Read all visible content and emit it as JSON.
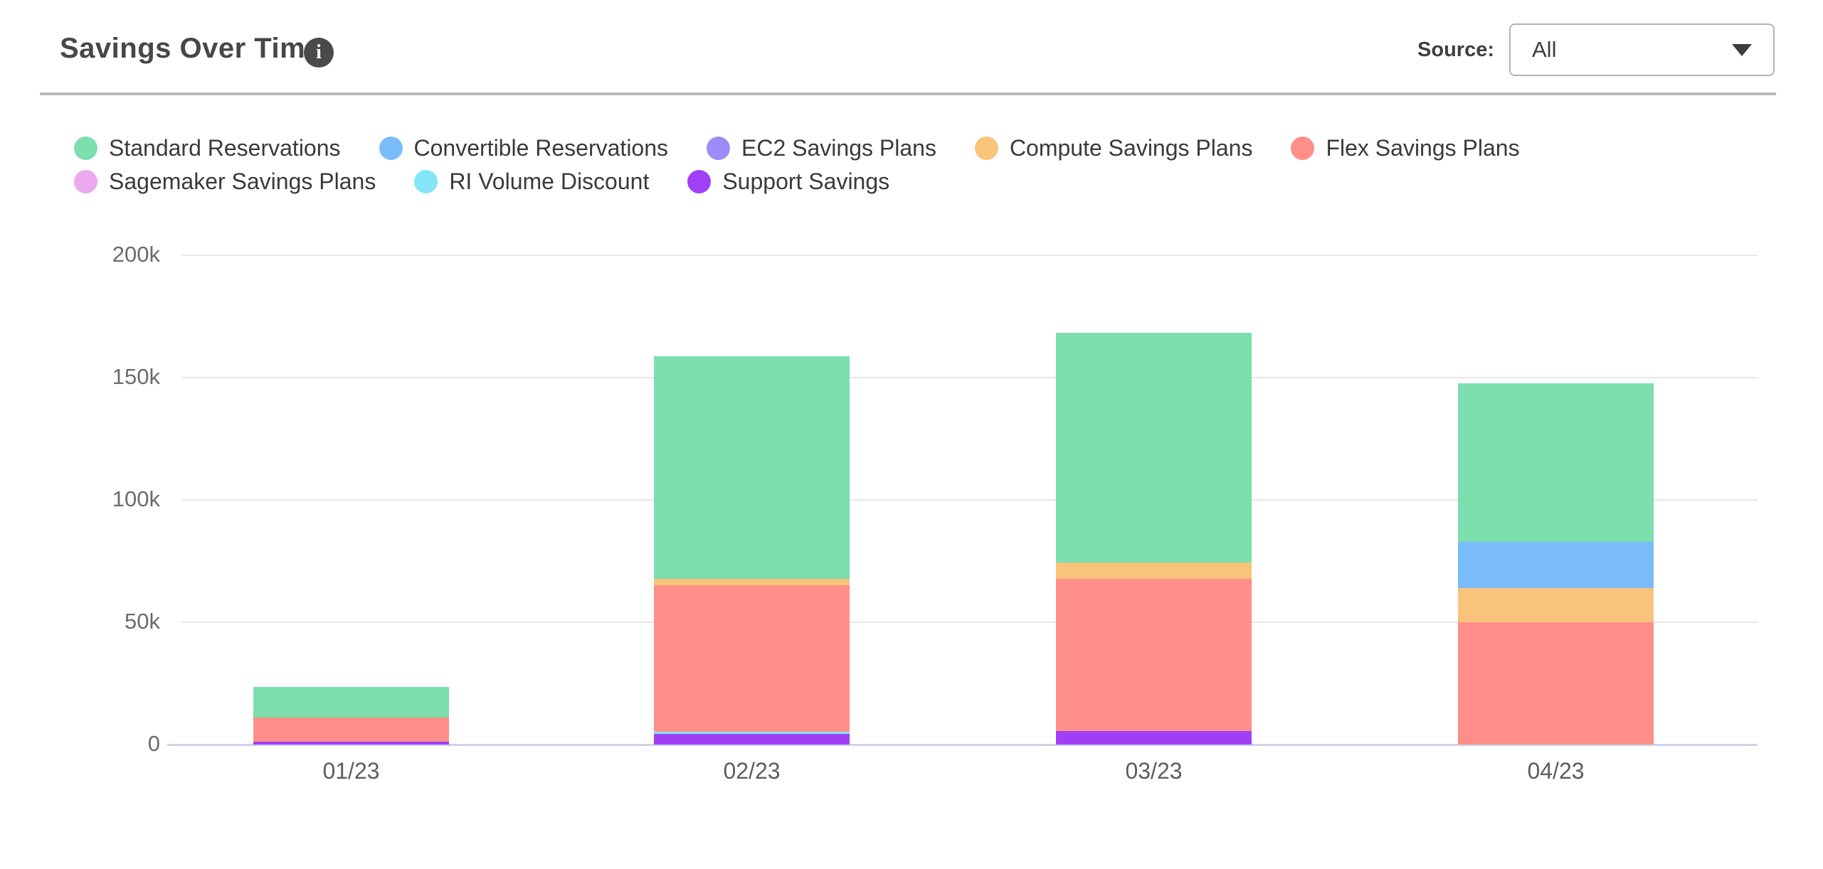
{
  "header": {
    "title": "Savings Over Time",
    "source_label": "Source:",
    "source_value": "All"
  },
  "chart_data": {
    "type": "bar",
    "stacked": true,
    "title": "Savings Over Time",
    "categories": [
      "01/23",
      "02/23",
      "03/23",
      "04/23"
    ],
    "values_unit": "thousands",
    "series": [
      {
        "name": "Standard Reservations",
        "color": "#7ddeae",
        "values": [
          12.4,
          91.1,
          93.7,
          64.8
        ]
      },
      {
        "name": "Convertible Reservations",
        "color": "#7abcf9",
        "values": [
          0,
          0,
          0,
          19.0
        ]
      },
      {
        "name": "EC2 Savings Plans",
        "color": "#9c8cfa",
        "values": [
          0,
          0,
          0,
          0
        ]
      },
      {
        "name": "Compute Savings Plans",
        "color": "#f8c47b",
        "values": [
          0,
          2.6,
          6.8,
          13.9
        ]
      },
      {
        "name": "Flex Savings Plans",
        "color": "#ff8e89",
        "values": [
          10.0,
          59.9,
          62.3,
          50.0
        ]
      },
      {
        "name": "Sagemaker Savings Plans",
        "color": "#eca9ee",
        "values": [
          0,
          0,
          0,
          0
        ]
      },
      {
        "name": "RI Volume Discount",
        "color": "#84e5f8",
        "values": [
          0,
          0.8,
          0,
          0
        ]
      },
      {
        "name": "Support Savings",
        "color": "#a040f6",
        "values": [
          1.1,
          4.4,
          5.4,
          0
        ]
      }
    ],
    "stack_order_bottom_to_top": [
      "Support Savings",
      "RI Volume Discount",
      "Sagemaker Savings Plans",
      "Flex Savings Plans",
      "Compute Savings Plans",
      "EC2 Savings Plans",
      "Convertible Reservations",
      "Standard Reservations"
    ],
    "totals": [
      23.5,
      158.8,
      168.2,
      147.7
    ],
    "y_ticks": [
      {
        "value": 0,
        "label": "0"
      },
      {
        "value": 50,
        "label": "50k"
      },
      {
        "value": 100,
        "label": "100k"
      },
      {
        "value": 150,
        "label": "150k"
      },
      {
        "value": 200,
        "label": "200k"
      }
    ],
    "ylim": [
      0,
      200
    ],
    "grid": "horizontal",
    "legend_position": "top-left, two rows"
  }
}
